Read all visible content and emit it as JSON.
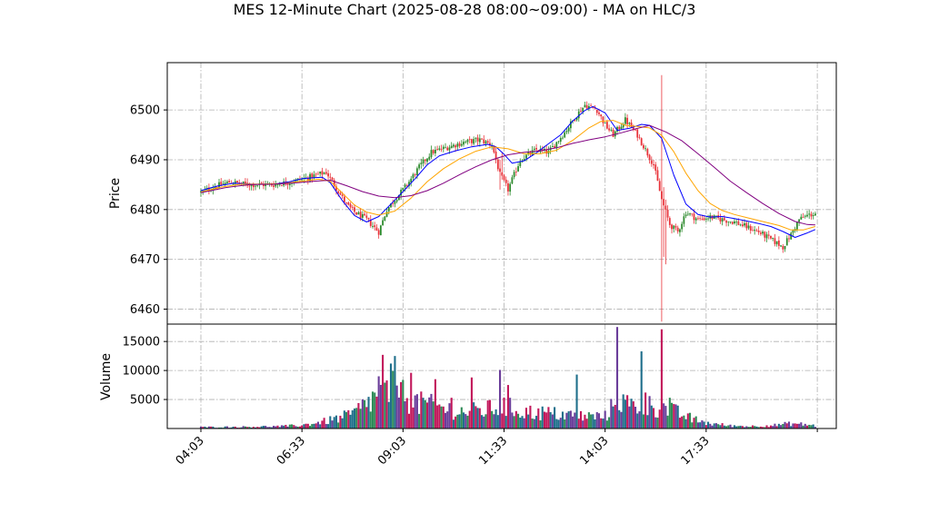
{
  "chart_data": {
    "type": "candlestick",
    "title": "MES 12-Minute Chart (2025-08-28 08:00~09:00) - MA on HLC/3",
    "price_panel": {
      "ylabel": "Price",
      "ylim": [
        6457,
        6509.5
      ],
      "yticks": [
        6460,
        6470,
        6480,
        6490,
        6500
      ],
      "grid": true,
      "up_color": "#2e8b2e",
      "down_color": "#e8333a",
      "ma_series": [
        {
          "color": "#0000ff",
          "points": [
            [
              0,
              6483.8
            ],
            [
              8,
              6484.7
            ],
            [
              16,
              6485.3
            ],
            [
              26,
              6485.1
            ],
            [
              36,
              6485.1
            ],
            [
              44,
              6485.6
            ],
            [
              50,
              6486.2
            ],
            [
              56,
              6486.4
            ],
            [
              60,
              6486.5
            ],
            [
              64,
              6485.4
            ],
            [
              70,
              6481.8
            ],
            [
              76,
              6478.8
            ],
            [
              82,
              6477.5
            ],
            [
              88,
              6478.6
            ],
            [
              94,
              6481.1
            ],
            [
              100,
              6483.6
            ],
            [
              106,
              6486.2
            ],
            [
              112,
              6489.0
            ],
            [
              118,
              6490.8
            ],
            [
              126,
              6491.8
            ],
            [
              134,
              6492.6
            ],
            [
              142,
              6493.1
            ],
            [
              146,
              6492.6
            ],
            [
              150,
              6491.1
            ],
            [
              154,
              6489.3
            ],
            [
              160,
              6489.8
            ],
            [
              166,
              6491.4
            ],
            [
              172,
              6493.2
            ],
            [
              178,
              6495.0
            ],
            [
              184,
              6497.8
            ],
            [
              190,
              6499.9
            ],
            [
              194,
              6500.7
            ],
            [
              200,
              6499.4
            ],
            [
              206,
              6495.9
            ],
            [
              212,
              6496.3
            ],
            [
              218,
              6497.1
            ],
            [
              222,
              6496.9
            ],
            [
              228,
              6494.3
            ],
            [
              234,
              6486.9
            ],
            [
              240,
              6481.1
            ],
            [
              246,
              6479.0
            ],
            [
              252,
              6478.5
            ],
            [
              258,
              6478.6
            ],
            [
              264,
              6478.2
            ],
            [
              270,
              6477.7
            ],
            [
              276,
              6477.2
            ],
            [
              282,
              6476.6
            ],
            [
              288,
              6475.6
            ],
            [
              294,
              6474.4
            ],
            [
              300,
              6475.3
            ],
            [
              304,
              6476.0
            ]
          ]
        },
        {
          "color": "#ffa500",
          "points": [
            [
              0,
              6483.5
            ],
            [
              10,
              6484.5
            ],
            [
              20,
              6485.1
            ],
            [
              30,
              6485.1
            ],
            [
              40,
              6485.2
            ],
            [
              50,
              6485.7
            ],
            [
              58,
              6486.1
            ],
            [
              64,
              6485.7
            ],
            [
              70,
              6483.3
            ],
            [
              76,
              6480.9
            ],
            [
              82,
              6479.5
            ],
            [
              88,
              6478.9
            ],
            [
              96,
              6479.7
            ],
            [
              104,
              6482.3
            ],
            [
              112,
              6485.6
            ],
            [
              120,
              6488.2
            ],
            [
              128,
              6490.2
            ],
            [
              136,
              6491.7
            ],
            [
              144,
              6492.6
            ],
            [
              152,
              6492.2
            ],
            [
              160,
              6491.2
            ],
            [
              168,
              6491.2
            ],
            [
              176,
              6491.9
            ],
            [
              184,
              6493.9
            ],
            [
              192,
              6496.4
            ],
            [
              198,
              6497.7
            ],
            [
              204,
              6497.9
            ],
            [
              210,
              6496.9
            ],
            [
              216,
              6496.7
            ],
            [
              222,
              6496.4
            ],
            [
              228,
              6494.9
            ],
            [
              234,
              6491.6
            ],
            [
              240,
              6487.3
            ],
            [
              246,
              6483.8
            ],
            [
              252,
              6481.2
            ],
            [
              258,
              6479.8
            ],
            [
              264,
              6479.0
            ],
            [
              270,
              6478.4
            ],
            [
              278,
              6477.6
            ],
            [
              286,
              6476.8
            ],
            [
              292,
              6475.9
            ],
            [
              298,
              6475.9
            ],
            [
              304,
              6476.6
            ]
          ]
        },
        {
          "color": "#800080",
          "points": [
            [
              0,
              6483.4
            ],
            [
              12,
              6484.4
            ],
            [
              24,
              6485.0
            ],
            [
              36,
              6485.1
            ],
            [
              48,
              6485.4
            ],
            [
              56,
              6485.7
            ],
            [
              64,
              6485.9
            ],
            [
              72,
              6484.8
            ],
            [
              80,
              6483.6
            ],
            [
              88,
              6482.7
            ],
            [
              96,
              6482.4
            ],
            [
              104,
              6482.8
            ],
            [
              112,
              6483.8
            ],
            [
              120,
              6485.3
            ],
            [
              128,
              6487.0
            ],
            [
              136,
              6488.6
            ],
            [
              144,
              6490.0
            ],
            [
              152,
              6491.0
            ],
            [
              160,
              6491.5
            ],
            [
              168,
              6491.8
            ],
            [
              176,
              6492.4
            ],
            [
              184,
              6493.3
            ],
            [
              192,
              6494.0
            ],
            [
              200,
              6494.6
            ],
            [
              208,
              6495.4
            ],
            [
              216,
              6496.3
            ],
            [
              222,
              6496.9
            ],
            [
              230,
              6495.6
            ],
            [
              238,
              6493.8
            ],
            [
              246,
              6491.2
            ],
            [
              254,
              6488.5
            ],
            [
              262,
              6485.7
            ],
            [
              270,
              6483.4
            ],
            [
              278,
              6481.2
            ],
            [
              286,
              6479.2
            ],
            [
              294,
              6477.6
            ],
            [
              300,
              6477.0
            ],
            [
              304,
              6476.9
            ]
          ]
        }
      ],
      "candle_anchors": [
        [
          0,
          6483.5
        ],
        [
          8,
          6484.8
        ],
        [
          14,
          6485.5
        ],
        [
          24,
          6485.0
        ],
        [
          36,
          6485.0
        ],
        [
          44,
          6485.5
        ],
        [
          52,
          6486.3
        ],
        [
          62,
          6487.5
        ],
        [
          66,
          6485.0
        ],
        [
          72,
          6481.0
        ],
        [
          76,
          6479.5
        ],
        [
          82,
          6478.0
        ],
        [
          88,
          6475.5
        ],
        [
          92,
          6480.0
        ],
        [
          96,
          6482.0
        ],
        [
          102,
          6485.0
        ],
        [
          108,
          6488.5
        ],
        [
          114,
          6491.5
        ],
        [
          122,
          6492.5
        ],
        [
          130,
          6493.5
        ],
        [
          138,
          6494.0
        ],
        [
          144,
          6493.0
        ],
        [
          148,
          6487.0
        ],
        [
          152,
          6484.0
        ],
        [
          158,
          6490.0
        ],
        [
          166,
          6492.0
        ],
        [
          172,
          6491.5
        ],
        [
          180,
          6495.5
        ],
        [
          186,
          6499.0
        ],
        [
          190,
          6501.0
        ],
        [
          196,
          6500.0
        ],
        [
          200,
          6497.0
        ],
        [
          204,
          6495.0
        ],
        [
          210,
          6498.0
        ],
        [
          216,
          6495.0
        ],
        [
          220,
          6492.0
        ],
        [
          224,
          6489.0
        ],
        [
          228,
          6482.0
        ],
        [
          232,
          6477.0
        ],
        [
          236,
          6475.5
        ],
        [
          240,
          6479.5
        ],
        [
          246,
          6478.0
        ],
        [
          252,
          6478.5
        ],
        [
          258,
          6478.0
        ],
        [
          264,
          6477.5
        ],
        [
          270,
          6476.5
        ],
        [
          276,
          6475.5
        ],
        [
          282,
          6474.0
        ],
        [
          288,
          6472.5
        ],
        [
          292,
          6475.0
        ],
        [
          296,
          6478.0
        ],
        [
          300,
          6478.8
        ],
        [
          304,
          6479.2
        ]
      ]
    },
    "volume_panel": {
      "ylabel": "Volume",
      "ylim": [
        0,
        18000
      ],
      "yticks": [
        5000,
        10000,
        15000
      ],
      "grid": true,
      "bar_colors": [
        "#1f6f8b",
        "#c2185b",
        "#2e8b57",
        "#6a3d9a"
      ],
      "spikes": [
        [
          88,
          9000
        ],
        [
          90,
          12700
        ],
        [
          94,
          11200
        ],
        [
          96,
          12500
        ],
        [
          99,
          8000
        ],
        [
          104,
          9600
        ],
        [
          110,
          5300
        ],
        [
          116,
          8500
        ],
        [
          124,
          5300
        ],
        [
          134,
          8800
        ],
        [
          148,
          10100
        ],
        [
          152,
          7500
        ],
        [
          186,
          9300
        ],
        [
          206,
          17500
        ],
        [
          218,
          13300
        ],
        [
          220,
          6200
        ],
        [
          228,
          17100
        ],
        [
          232,
          5300
        ]
      ],
      "baseline": [
        [
          0,
          250
        ],
        [
          20,
          300
        ],
        [
          40,
          400
        ],
        [
          50,
          600
        ],
        [
          60,
          1200
        ],
        [
          70,
          2000
        ],
        [
          76,
          2800
        ],
        [
          82,
          4500
        ],
        [
          88,
          6000
        ],
        [
          96,
          7000
        ],
        [
          100,
          6000
        ],
        [
          108,
          4500
        ],
        [
          116,
          4000
        ],
        [
          130,
          3000
        ],
        [
          140,
          3300
        ],
        [
          150,
          4000
        ],
        [
          160,
          3000
        ],
        [
          170,
          2800
        ],
        [
          180,
          2500
        ],
        [
          190,
          2200
        ],
        [
          200,
          2200
        ],
        [
          206,
          5000
        ],
        [
          214,
          4000
        ],
        [
          220,
          4200
        ],
        [
          228,
          3800
        ],
        [
          236,
          2800
        ],
        [
          244,
          1600
        ],
        [
          252,
          900
        ],
        [
          262,
          500
        ],
        [
          272,
          400
        ],
        [
          284,
          600
        ],
        [
          292,
          900
        ],
        [
          300,
          700
        ],
        [
          304,
          500
        ]
      ]
    },
    "x": {
      "n_bars": 305,
      "tick_labels": [
        "04:03",
        "06:33",
        "09:03",
        "11:33",
        "14:03",
        "17:33"
      ],
      "tick_bars": [
        0,
        50,
        100,
        150,
        200,
        250
      ],
      "extra_grid_bars": [
        305
      ]
    }
  }
}
